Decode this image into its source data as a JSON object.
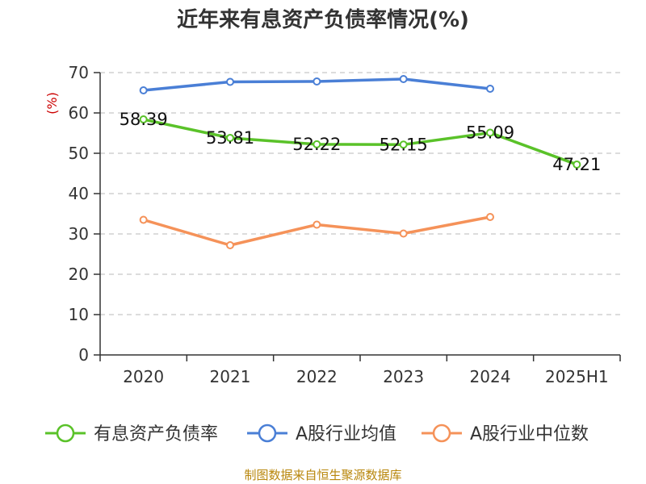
{
  "chart_data": {
    "type": "line",
    "title": "近年来有息资产负债率情况(%)",
    "ylabel": "(%)",
    "xlabel": "",
    "categories": [
      "2020",
      "2021",
      "2022",
      "2023",
      "2024",
      "2025H1"
    ],
    "ylim": [
      0,
      70
    ],
    "yticks": [
      0,
      10,
      20,
      30,
      40,
      50,
      60,
      70
    ],
    "grid": true,
    "legend_position": "bottom",
    "series": [
      {
        "name": "有息资产负债率",
        "color": "#5ac229",
        "values": [
          58.39,
          53.81,
          52.22,
          52.15,
          55.09,
          47.21
        ],
        "labels": [
          "58.39",
          "53.81",
          "52.22",
          "52.15",
          "55.09",
          "47.21"
        ]
      },
      {
        "name": "A股行业均值",
        "color": "#4a7fd6",
        "values": [
          65.6,
          67.7,
          67.8,
          68.4,
          66.0,
          null
        ]
      },
      {
        "name": "A股行业中位数",
        "color": "#f59259",
        "values": [
          33.5,
          27.2,
          32.3,
          30.1,
          34.2,
          null
        ]
      }
    ],
    "source": "制图数据来自恒生聚源数据库"
  }
}
